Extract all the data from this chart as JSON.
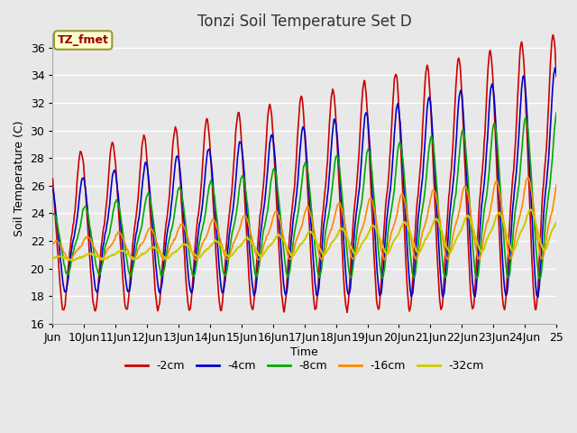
{
  "title": "Tonzi Soil Temperature Set D",
  "xlabel": "Time",
  "ylabel": "Soil Temperature (C)",
  "ylim": [
    16,
    37
  ],
  "annotation_text": "TZ_fmet",
  "annotation_bg": "#ffffcc",
  "annotation_border": "#999933",
  "annotation_text_color": "#990000",
  "bg_color": "#e8e8e8",
  "grid_color": "#ffffff",
  "series": [
    {
      "label": "-2cm",
      "color": "#cc0000",
      "lw": 1.2
    },
    {
      "label": "-4cm",
      "color": "#0000cc",
      "lw": 1.2
    },
    {
      "label": "-8cm",
      "color": "#00aa00",
      "lw": 1.2
    },
    {
      "label": "-16cm",
      "color": "#ff8800",
      "lw": 1.2
    },
    {
      "label": "-32cm",
      "color": "#cccc00",
      "lw": 1.5
    }
  ]
}
